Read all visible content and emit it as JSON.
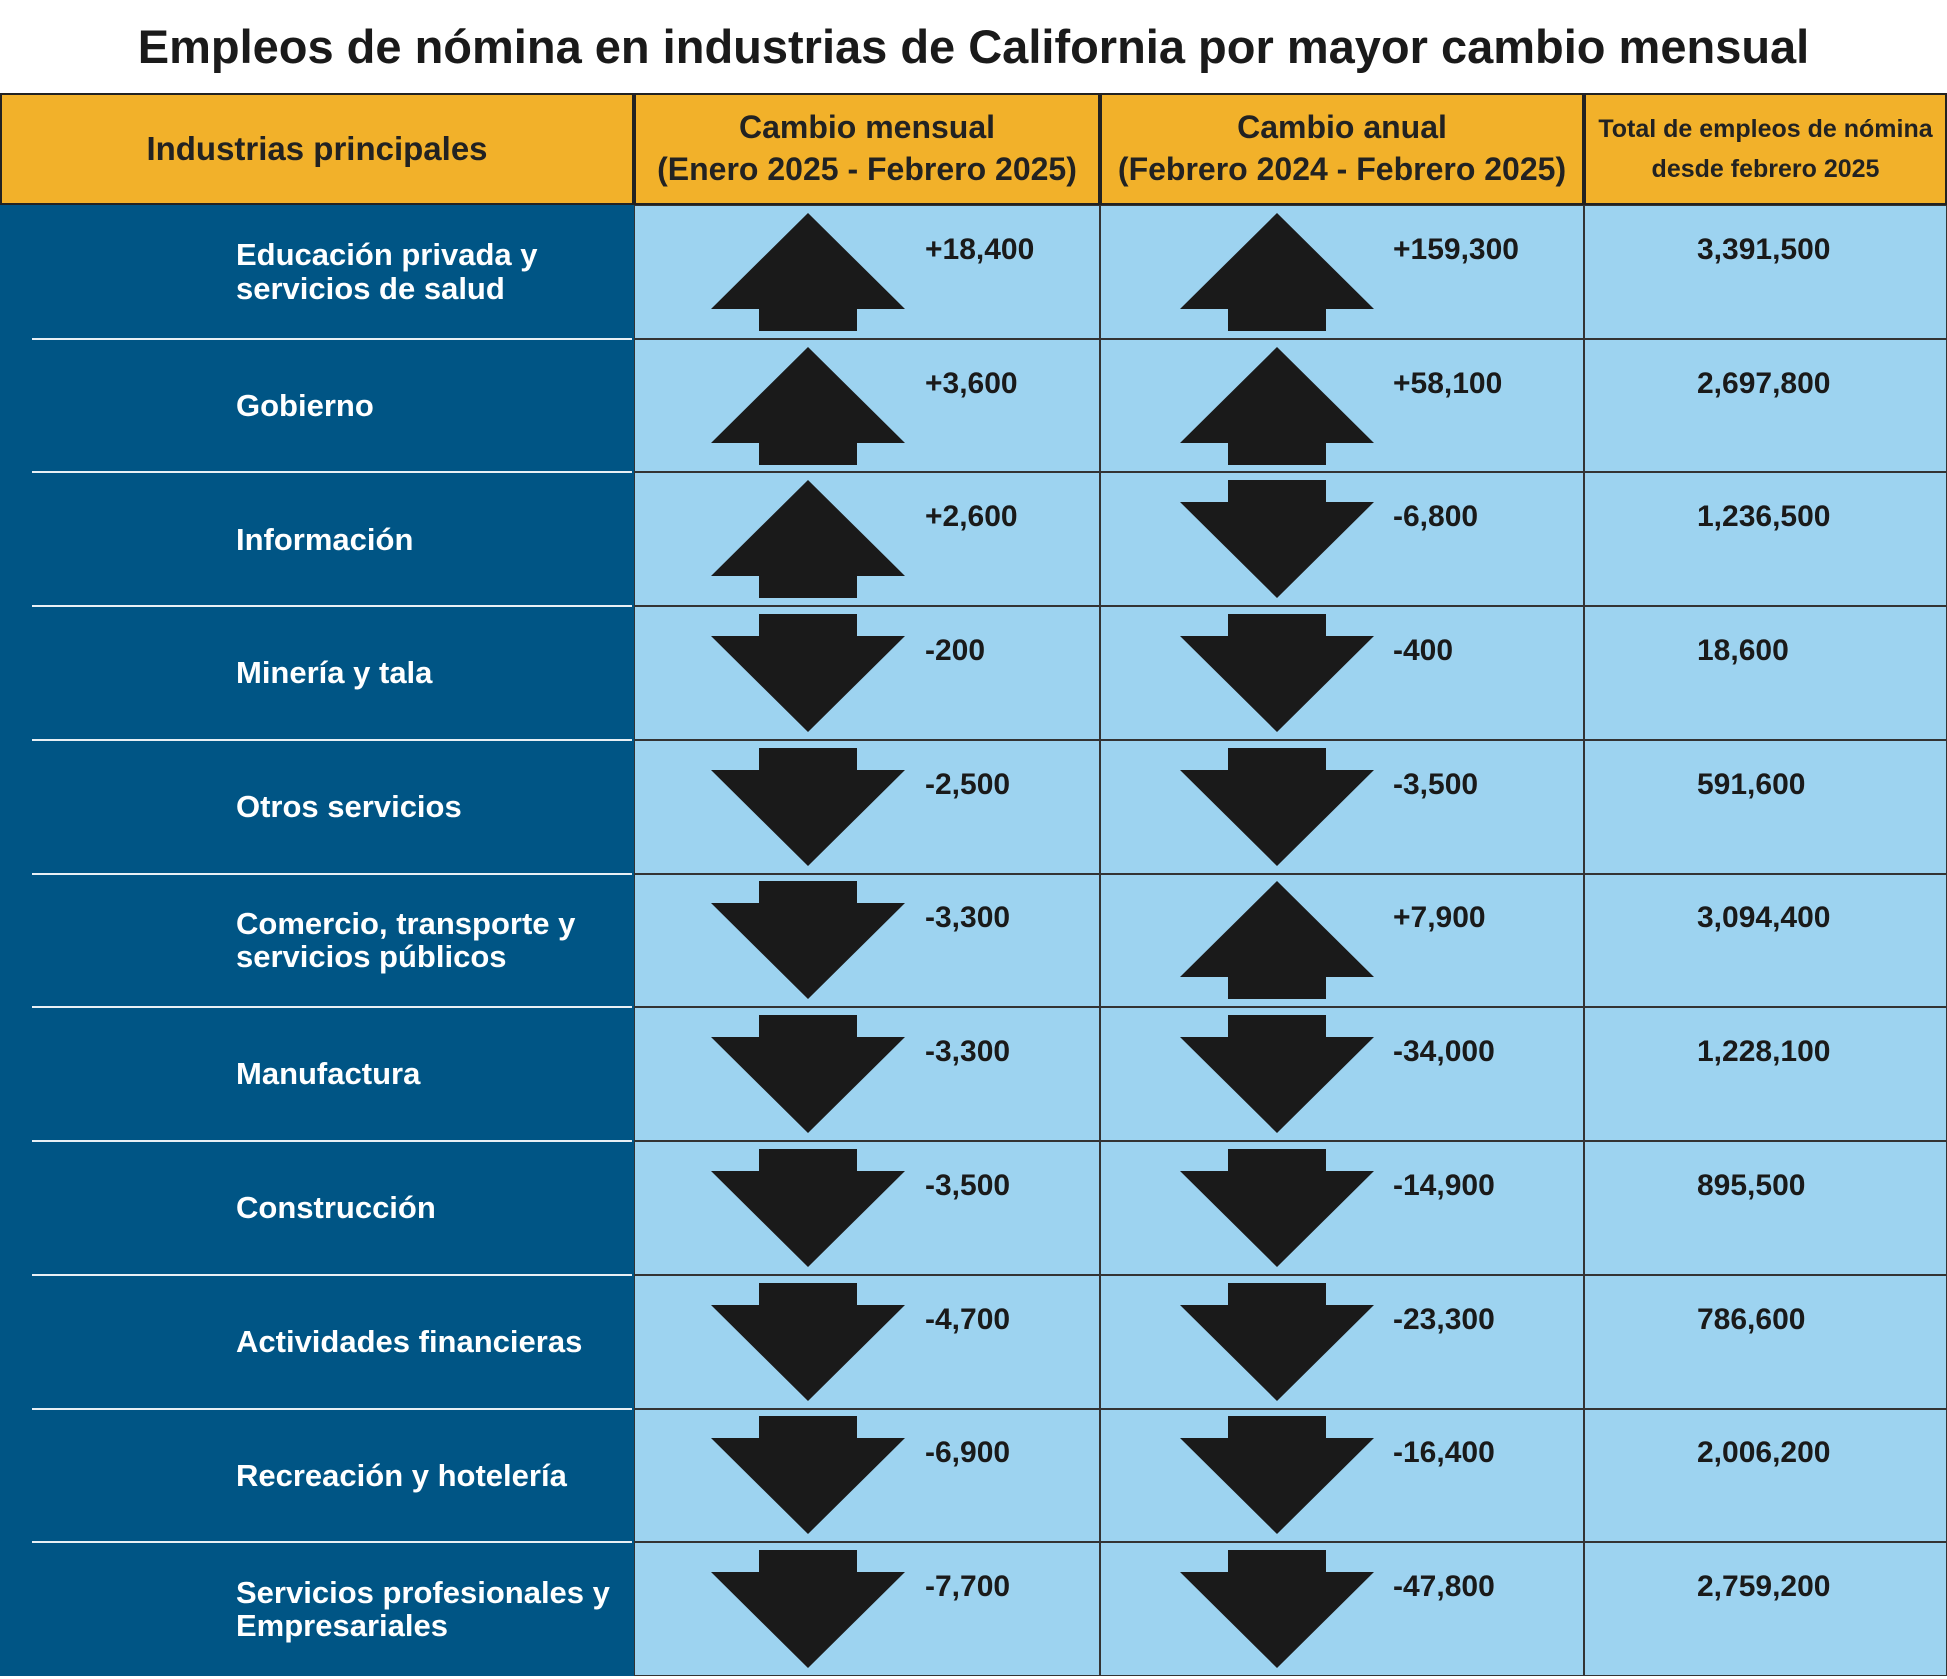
{
  "title": "Empleos de nómina en industrias de California por mayor cambio mensual",
  "header": {
    "industry": "Industrias principales",
    "monthly": [
      "Cambio mensual",
      "(Enero 2025 - Febrero 2025)"
    ],
    "annual": [
      "Cambio anual",
      "(Febrero 2024 - Febrero 2025)"
    ],
    "total": "Total de empleos de nómina desde febrero 2025"
  },
  "rows": [
    [
      "Educación privada y servicios de salud",
      "+18,400",
      "+159,300",
      "3,391,500"
    ],
    [
      "Gobierno",
      "+3,600",
      "+58,100",
      "2,697,800"
    ],
    [
      "Información",
      "+2,600",
      "-6,800",
      "1,236,500"
    ],
    [
      "Minería y tala",
      "-200",
      "-400",
      "18,600"
    ],
    [
      "Otros servicios",
      "-2,500",
      "-3,500",
      "591,600"
    ],
    [
      "Comercio, transporte y servicios públicos",
      "-3,300",
      "+7,900",
      "3,094,400"
    ],
    [
      "Manufactura",
      "-3,300",
      "-34,000",
      "1,228,100"
    ],
    [
      "Construcción",
      "-3,500",
      "-14,900",
      "895,500"
    ],
    [
      "Actividades financieras",
      "-4,700",
      "-23,300",
      "786,600"
    ],
    [
      "Recreación y hotelería",
      "-6,900",
      "-16,400",
      "2,006,200"
    ],
    [
      "Servicios profesionales y Empresariales",
      "-7,700",
      "-47,800",
      "2,759,200"
    ]
  ]
}
